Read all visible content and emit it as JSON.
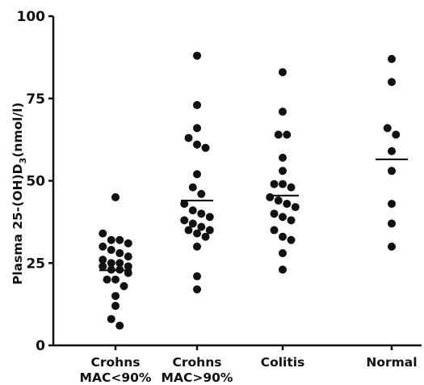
{
  "chart_data": {
    "type": "scatter",
    "ylabel": "Plasma 25-(OH)D",
    "ylabel_sub": "3",
    "ylabel_unit": "(nmol/l)",
    "ylim": [
      0,
      100
    ],
    "yticks": [
      "0",
      "25",
      "50",
      "75",
      "100"
    ],
    "yticks_values": [
      0,
      25,
      50,
      75,
      100
    ],
    "categories": [
      {
        "line1": "Crohns",
        "line2": "MAC<90%"
      },
      {
        "line1": "Crohns",
        "line2": "MAC>90%"
      },
      {
        "line1": "Colitis",
        "line2": ""
      },
      {
        "line1": "Normal",
        "line2": ""
      }
    ],
    "series": [
      {
        "mean": 22.8,
        "values": [
          45,
          34,
          32,
          32,
          31,
          30,
          29,
          28,
          27,
          26,
          25,
          25,
          24,
          24,
          23,
          23,
          22,
          20,
          20,
          18,
          15,
          12,
          8,
          6
        ]
      },
      {
        "mean": 44,
        "values": [
          88,
          73,
          66,
          63,
          61,
          60,
          52,
          48,
          46,
          43,
          41,
          40,
          39,
          38,
          37,
          36,
          35,
          35,
          34,
          33,
          30,
          21,
          17
        ]
      },
      {
        "mean": 45.5,
        "values": [
          83,
          71,
          64,
          64,
          57,
          53,
          49,
          49,
          48,
          45,
          44,
          43,
          42,
          40,
          39,
          38,
          35,
          33,
          32,
          28,
          23
        ]
      },
      {
        "mean": 56.5,
        "values": [
          87,
          80,
          66,
          64,
          59,
          53,
          43,
          37,
          30
        ]
      }
    ],
    "colors": {
      "point": "#111111",
      "axis": "#111111"
    }
  }
}
